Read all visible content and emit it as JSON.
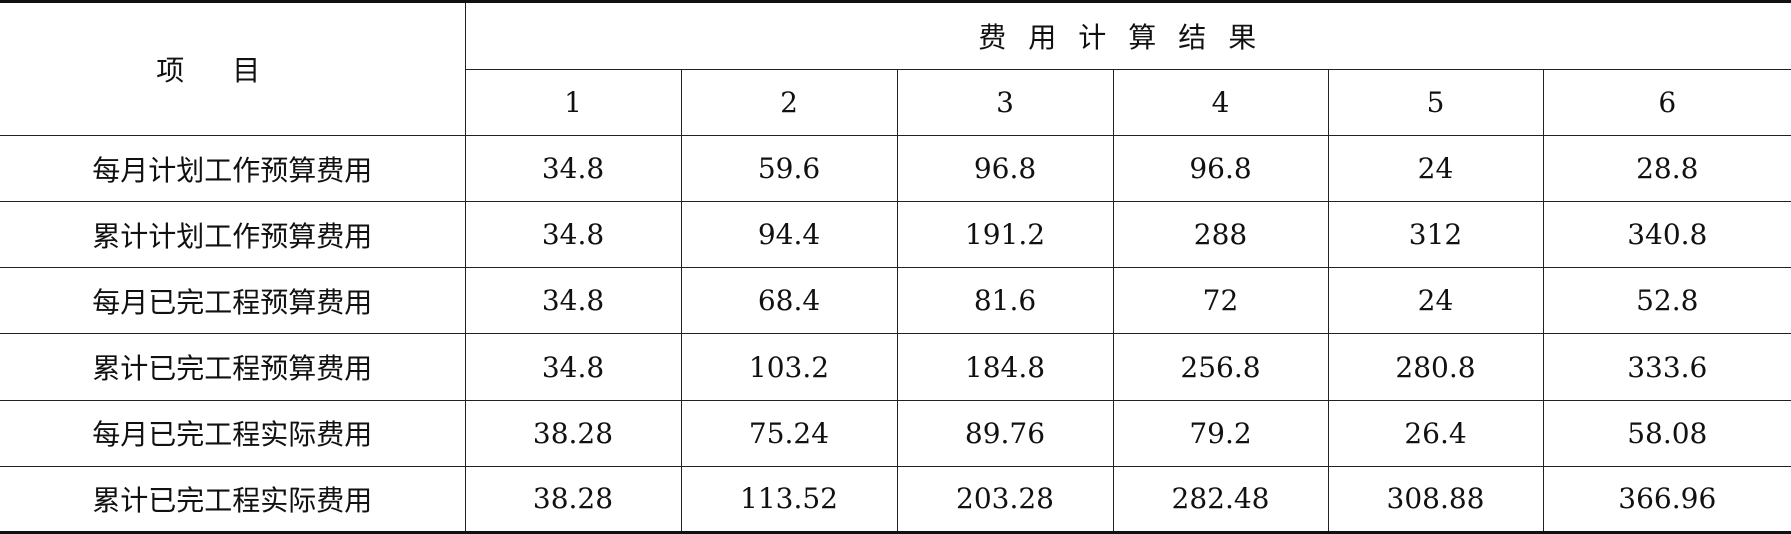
{
  "table": {
    "item_header": "项目",
    "group_header": "费用计算结果",
    "columns": [
      "1",
      "2",
      "3",
      "4",
      "5",
      "6"
    ],
    "rows": [
      {
        "label": "每月计划工作预算费用",
        "values": [
          "34.8",
          "59.6",
          "96.8",
          "96.8",
          "24",
          "28.8"
        ]
      },
      {
        "label": "累计计划工作预算费用",
        "values": [
          "34.8",
          "94.4",
          "191.2",
          "288",
          "312",
          "340.8"
        ]
      },
      {
        "label": "每月已完工程预算费用",
        "values": [
          "34.8",
          "68.4",
          "81.6",
          "72",
          "24",
          "52.8"
        ]
      },
      {
        "label": "累计已完工程预算费用",
        "values": [
          "34.8",
          "103.2",
          "184.8",
          "256.8",
          "280.8",
          "333.6"
        ]
      },
      {
        "label": "每月已完工程实际费用",
        "values": [
          "38.28",
          "75.24",
          "89.76",
          "79.2",
          "26.4",
          "58.08"
        ]
      },
      {
        "label": "累计已完工程实际费用",
        "values": [
          "38.28",
          "113.52",
          "203.28",
          "282.48",
          "308.88",
          "366.96"
        ]
      }
    ]
  }
}
